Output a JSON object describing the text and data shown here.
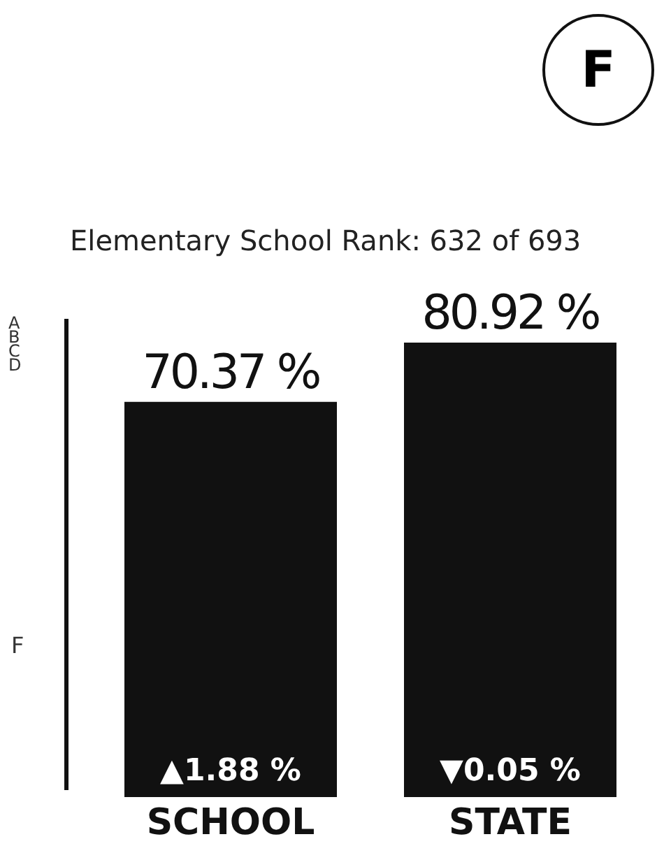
{
  "chart_data": {
    "type": "bar",
    "title": "Elementary School Rank: 632 of 693",
    "categories": [
      "SCHOOL",
      "STATE"
    ],
    "values": [
      70.37,
      80.92
    ],
    "color": "#111111",
    "value_labels": [
      "70.37 %",
      "80.92 %"
    ],
    "annotations": [
      "F",
      "A",
      "B",
      "C",
      "D",
      "F",
      "▲1.88 %",
      "▼0.05 %"
    ]
  }
}
